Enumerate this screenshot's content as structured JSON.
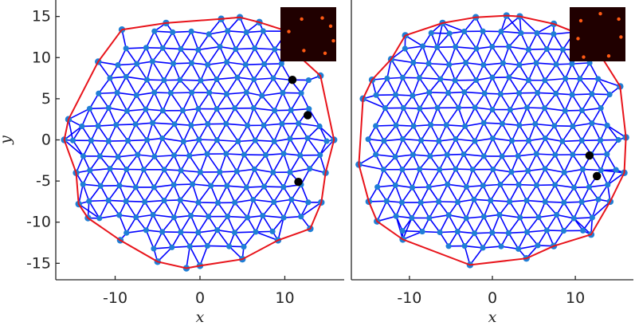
{
  "chart_data": [
    {
      "type": "scatter",
      "xlabel": "x",
      "ylabel": "y",
      "xlim": [
        -17,
        17
      ],
      "ylim": [
        -17,
        17
      ],
      "xticks": [
        -10,
        0,
        10
      ],
      "yticks": [
        -15,
        -10,
        -5,
        0,
        5,
        10,
        15
      ],
      "lattice_spacing": 2.15,
      "lattice_seed": 7,
      "mesh_color": "#0000ff",
      "node_color": "#1f7fd6",
      "boundary_color": "#e8141b",
      "defect_color": "#000000",
      "boundary": [
        [
          -9.2,
          13.4
        ],
        [
          -4,
          14.2
        ],
        [
          2.5,
          14.7
        ],
        [
          4.7,
          14.9
        ],
        [
          7,
          14.3
        ],
        [
          10.3,
          13.2
        ],
        [
          11,
          10.8
        ],
        [
          14.2,
          7.8
        ],
        [
          15.8,
          0
        ],
        [
          14.8,
          -4
        ],
        [
          14.3,
          -7.6
        ],
        [
          13,
          -10.8
        ],
        [
          9.2,
          -12.2
        ],
        [
          5,
          -14.5
        ],
        [
          0,
          -15.3
        ],
        [
          -1.6,
          -15.6
        ],
        [
          -5,
          -14.8
        ],
        [
          -9.4,
          -12.2
        ],
        [
          -13.2,
          -9.5
        ],
        [
          -14.3,
          -7.8
        ],
        [
          -14.6,
          -4
        ],
        [
          -16,
          0
        ],
        [
          -15.5,
          2.5
        ],
        [
          -12,
          9.5
        ],
        [
          -9.2,
          13.4
        ]
      ],
      "defects": [
        [
          10.9,
          7.3
        ],
        [
          12.7,
          3.0
        ],
        [
          11.6,
          -5.1
        ]
      ],
      "inset": {
        "bg": "#200000",
        "dot_color": "#ff5a14",
        "dots": [
          [
            0.38,
            0.22
          ],
          [
            0.75,
            0.2
          ],
          [
            0.9,
            0.35
          ],
          [
            0.15,
            0.45
          ],
          [
            0.95,
            0.62
          ],
          [
            0.42,
            0.8
          ],
          [
            0.8,
            0.85
          ]
        ]
      }
    },
    {
      "type": "scatter",
      "xlabel": "x",
      "ylabel": "",
      "xlim": [
        -17,
        17
      ],
      "ylim": [
        -17,
        17
      ],
      "xticks": [
        -10,
        0,
        10
      ],
      "yticks": [],
      "lattice_spacing": 2.15,
      "lattice_seed": 19,
      "mesh_color": "#0000ff",
      "node_color": "#1f7fd6",
      "boundary_color": "#e8141b",
      "defect_color": "#000000",
      "boundary": [
        [
          -10.5,
          12.7
        ],
        [
          -6,
          14.2
        ],
        [
          -2,
          14.9
        ],
        [
          1.7,
          15.1
        ],
        [
          3.3,
          15
        ],
        [
          7.4,
          14.1
        ],
        [
          9.9,
          13.1
        ],
        [
          12.9,
          10.5
        ],
        [
          15.4,
          6.5
        ],
        [
          16.1,
          0.3
        ],
        [
          15.9,
          -4
        ],
        [
          14.2,
          -7.5
        ],
        [
          11.9,
          -11.5
        ],
        [
          7.4,
          -12.9
        ],
        [
          4.1,
          -14.4
        ],
        [
          -2.7,
          -15.2
        ],
        [
          -10.8,
          -12.1
        ],
        [
          -13.9,
          -9.9
        ],
        [
          -14.9,
          -7.5
        ],
        [
          -16.1,
          -3
        ],
        [
          -15.6,
          5
        ],
        [
          -14.5,
          7.3
        ],
        [
          -12.2,
          9.8
        ],
        [
          -10.5,
          12.7
        ]
      ],
      "defects": [
        [
          11.7,
          -1.9
        ],
        [
          12.6,
          -4.4
        ]
      ],
      "inset": {
        "bg": "#200000",
        "dot_color": "#ff5a14",
        "dots": [
          [
            0.2,
            0.25
          ],
          [
            0.55,
            0.12
          ],
          [
            0.88,
            0.22
          ],
          [
            0.15,
            0.58
          ],
          [
            0.92,
            0.55
          ],
          [
            0.25,
            0.92
          ],
          [
            0.7,
            0.9
          ]
        ]
      }
    }
  ]
}
